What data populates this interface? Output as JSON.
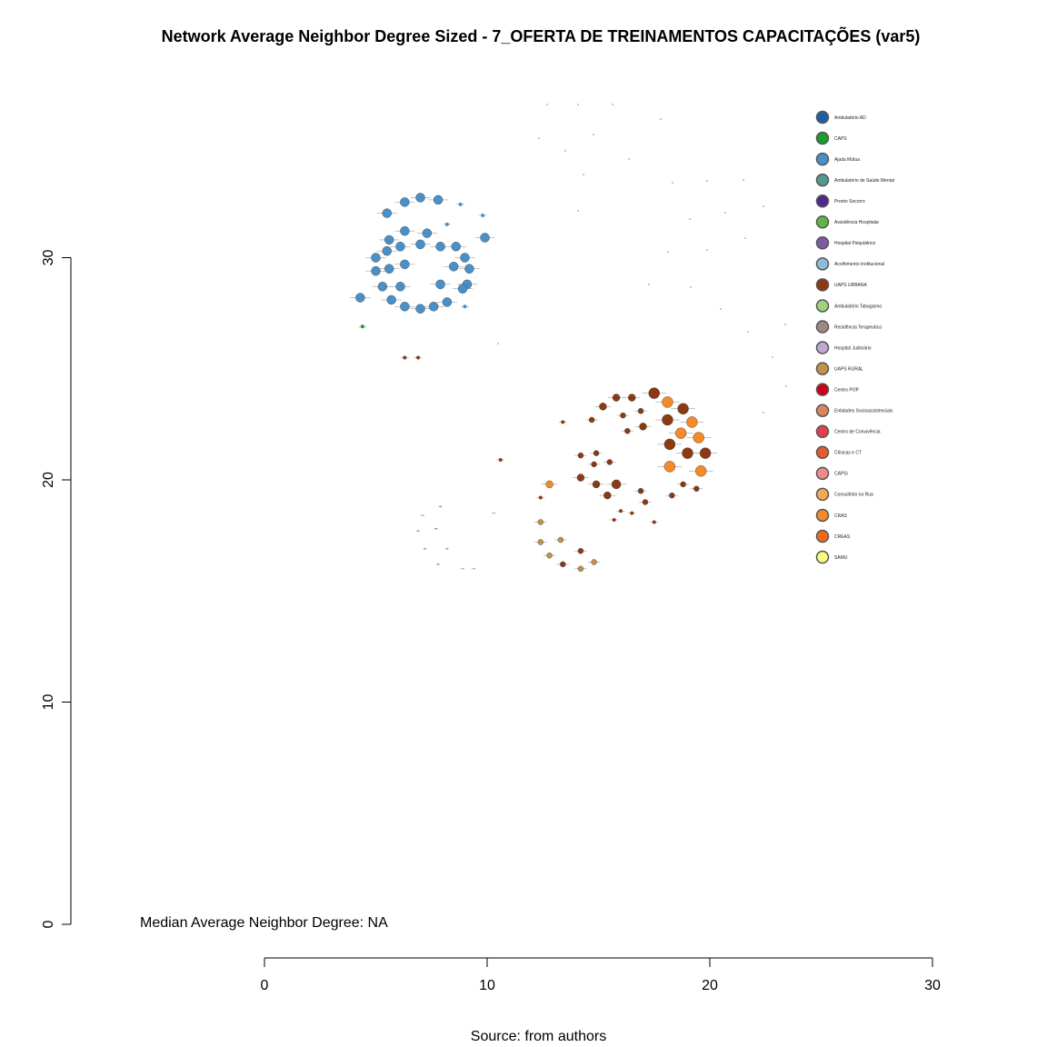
{
  "title": "Network Average Neighbor Degree Sized - 7_OFERTA DE TREINAMENTOS CAPACITAÇÕES (var5)",
  "median_note": "Median Average Neighbor Degree: NA",
  "source_note": "Source: from authors",
  "chart_data": {
    "type": "scatter",
    "title": "Network Average Neighbor Degree Sized - 7_OFERTA DE TREINAMENTOS CAPACITAÇÕES (var5)",
    "xlabel": "",
    "ylabel": "",
    "xlim": [
      0,
      30
    ],
    "ylim": [
      0,
      30
    ],
    "x_ticks": [
      "0",
      "10",
      "20",
      "30"
    ],
    "y_ticks": [
      "0",
      "10",
      "20",
      "30"
    ],
    "grid": false,
    "legend_position": "top-right",
    "legend": [
      {
        "label": "Ambulatório AD",
        "color": "#1f5fa8"
      },
      {
        "label": "CAPS",
        "color": "#1f9a2f"
      },
      {
        "label": "Ajuda Mútua",
        "color": "#4a90c8"
      },
      {
        "label": "Ambulatório de Saúde Mental",
        "color": "#4f9a8e"
      },
      {
        "label": "Pronto Socorro",
        "color": "#4b2a8a"
      },
      {
        "label": "Assistência Hospitalar",
        "color": "#5cb646"
      },
      {
        "label": "Hospital Psiquiátrico",
        "color": "#7b5aa6"
      },
      {
        "label": "Acolhimento Institucional",
        "color": "#8bbdd9"
      },
      {
        "label": "UAPS URBANA",
        "color": "#8b3a14"
      },
      {
        "label": "Ambulatório Tabagismo",
        "color": "#9fd27a"
      },
      {
        "label": "Residência Terapeutica",
        "color": "#9b8a84"
      },
      {
        "label": "Hospital Judiciário",
        "color": "#c0a8d2"
      },
      {
        "label": "UAPS RURAL",
        "color": "#c4914a"
      },
      {
        "label": "Centro POP",
        "color": "#cc0018"
      },
      {
        "label": "Entidades Socioassistenciais",
        "color": "#d88560"
      },
      {
        "label": "Centro de Convivência",
        "color": "#e04050"
      },
      {
        "label": "Clínicas e CT",
        "color": "#e45a32"
      },
      {
        "label": "CAPSi",
        "color": "#f08a8a"
      },
      {
        "label": "Consultório na Rua",
        "color": "#f4a850"
      },
      {
        "label": "CRAS",
        "color": "#f48a2a"
      },
      {
        "label": "CREAS",
        "color": "#f06a1a"
      },
      {
        "label": "SAMU",
        "color": "#fafa80"
      }
    ],
    "series": [
      {
        "name": "Ajuda Mútua",
        "color": "#4a90c8",
        "points": [
          [
            7.0,
            32.7,
            5
          ],
          [
            7.8,
            32.6,
            5
          ],
          [
            6.3,
            32.5,
            5
          ],
          [
            8.8,
            32.4,
            2
          ],
          [
            5.5,
            32.0,
            5
          ],
          [
            9.8,
            31.9,
            2
          ],
          [
            8.2,
            31.5,
            2
          ],
          [
            6.3,
            31.2,
            5
          ],
          [
            7.3,
            31.1,
            5
          ],
          [
            9.9,
            30.9,
            5
          ],
          [
            5.6,
            30.8,
            5
          ],
          [
            7.0,
            30.6,
            5
          ],
          [
            6.1,
            30.5,
            5
          ],
          [
            7.9,
            30.5,
            5
          ],
          [
            8.6,
            30.5,
            5
          ],
          [
            5.5,
            30.3,
            5
          ],
          [
            5.0,
            30.0,
            5
          ],
          [
            9.0,
            30.0,
            5
          ],
          [
            6.3,
            29.7,
            5
          ],
          [
            8.5,
            29.6,
            5
          ],
          [
            9.2,
            29.5,
            5
          ],
          [
            5.6,
            29.5,
            5
          ],
          [
            5.0,
            29.4,
            5
          ],
          [
            9.1,
            28.8,
            5
          ],
          [
            7.9,
            28.8,
            5
          ],
          [
            6.1,
            28.7,
            5
          ],
          [
            5.3,
            28.7,
            5
          ],
          [
            8.9,
            28.6,
            5
          ],
          [
            4.3,
            28.2,
            5
          ],
          [
            5.7,
            28.1,
            5
          ],
          [
            8.2,
            28.0,
            5
          ],
          [
            6.3,
            27.8,
            5
          ],
          [
            7.0,
            27.7,
            5
          ],
          [
            7.6,
            27.8,
            5
          ],
          [
            9.0,
            27.8,
            2
          ]
        ]
      },
      {
        "name": "CAPS",
        "color": "#1f9a2f",
        "points": [
          [
            4.4,
            26.9,
            2
          ]
        ]
      },
      {
        "name": "UAPS URBANA",
        "color": "#8b3a14",
        "points": [
          [
            6.3,
            25.5,
            2
          ],
          [
            6.9,
            25.5,
            2
          ],
          [
            10.6,
            20.9,
            2
          ],
          [
            17.5,
            23.9,
            6
          ],
          [
            15.8,
            23.7,
            4
          ],
          [
            16.5,
            23.7,
            4
          ],
          [
            15.2,
            23.3,
            4
          ],
          [
            18.8,
            23.2,
            6
          ],
          [
            16.9,
            23.1,
            3
          ],
          [
            16.1,
            22.9,
            3
          ],
          [
            14.7,
            22.7,
            3
          ],
          [
            13.4,
            22.6,
            2
          ],
          [
            18.1,
            22.7,
            6
          ],
          [
            17.0,
            22.4,
            4
          ],
          [
            16.3,
            22.2,
            3
          ],
          [
            18.2,
            21.6,
            6
          ],
          [
            19.0,
            21.2,
            6
          ],
          [
            19.8,
            21.2,
            6
          ],
          [
            14.9,
            21.2,
            3
          ],
          [
            14.2,
            21.1,
            3
          ],
          [
            15.5,
            20.8,
            3
          ],
          [
            14.8,
            20.7,
            3
          ],
          [
            14.2,
            20.1,
            4
          ],
          [
            18.8,
            19.8,
            3
          ],
          [
            15.8,
            19.8,
            5
          ],
          [
            14.9,
            19.8,
            4
          ],
          [
            19.4,
            19.6,
            3
          ],
          [
            16.9,
            19.5,
            3
          ],
          [
            15.4,
            19.3,
            4
          ],
          [
            18.3,
            19.3,
            3
          ],
          [
            17.1,
            19.0,
            3
          ],
          [
            12.4,
            19.2,
            2
          ],
          [
            16.0,
            18.6,
            2
          ],
          [
            16.5,
            18.5,
            2
          ],
          [
            15.7,
            18.2,
            2
          ],
          [
            17.5,
            18.1,
            2
          ],
          [
            14.2,
            16.8,
            3
          ],
          [
            13.4,
            16.2,
            3
          ]
        ]
      },
      {
        "name": "CRAS",
        "color": "#f48a2a",
        "points": [
          [
            18.1,
            23.5,
            6
          ],
          [
            19.2,
            22.6,
            6
          ],
          [
            18.7,
            22.1,
            6
          ],
          [
            19.5,
            21.9,
            6
          ],
          [
            18.2,
            20.6,
            6
          ],
          [
            19.6,
            20.4,
            6
          ],
          [
            12.8,
            19.8,
            4
          ]
        ]
      },
      {
        "name": "UAPS RURAL",
        "color": "#c4914a",
        "points": [
          [
            12.4,
            18.1,
            3
          ],
          [
            13.3,
            17.3,
            3
          ],
          [
            12.4,
            17.2,
            3
          ],
          [
            12.8,
            16.6,
            3
          ],
          [
            14.8,
            16.3,
            3
          ],
          [
            14.2,
            16.0,
            3
          ]
        ]
      },
      {
        "name": "Acolhimento Institucional",
        "color": "#8bbdd9",
        "points": [
          [
            7.1,
            18.4,
            1
          ],
          [
            9.4,
            16.0,
            1
          ],
          [
            10.3,
            18.5,
            1
          ],
          [
            8.9,
            16.0,
            1
          ]
        ]
      },
      {
        "name": "Residência Terapeutica",
        "color": "#9b8a84",
        "points": [
          [
            7.9,
            18.8,
            1
          ],
          [
            7.7,
            17.8,
            1
          ],
          [
            6.9,
            17.7,
            1
          ],
          [
            7.2,
            16.9,
            1
          ],
          [
            8.2,
            16.9,
            1
          ],
          [
            7.8,
            16.2,
            1
          ]
        ]
      }
    ]
  }
}
